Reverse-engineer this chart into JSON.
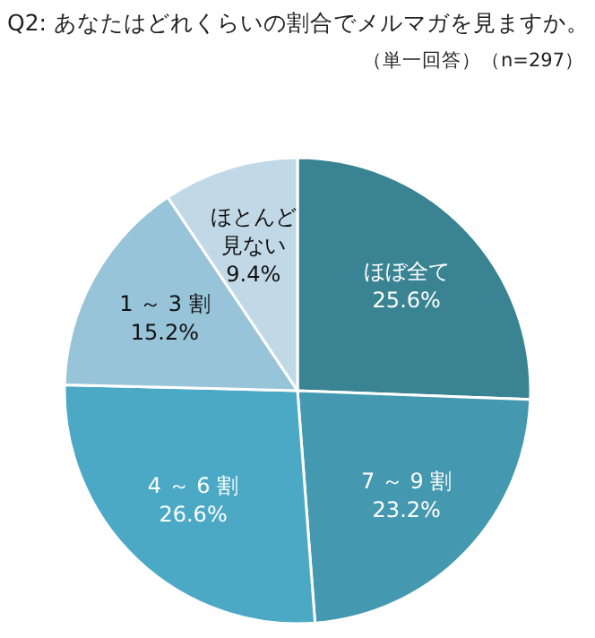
{
  "chart_data": {
    "type": "pie",
    "title": "Q2: あなたはどれくらいの割合でメルマガを見ますか。",
    "subtitle": "（単一回答）（n=297）",
    "categories": [
      "ほぼ全て",
      "7 ～ 9 割",
      "4 ～ 6 割",
      "1 ～ 3 割",
      "ほとんど見ない"
    ],
    "values": [
      25.6,
      23.2,
      26.6,
      15.2,
      9.4
    ],
    "value_labels": [
      "25.6%",
      "23.2%",
      "26.6%",
      "15.2%",
      "9.4%"
    ],
    "colors": [
      "#3a8393",
      "#4499b0",
      "#4ba9c6",
      "#97c4d8",
      "#c1d8e6"
    ]
  }
}
